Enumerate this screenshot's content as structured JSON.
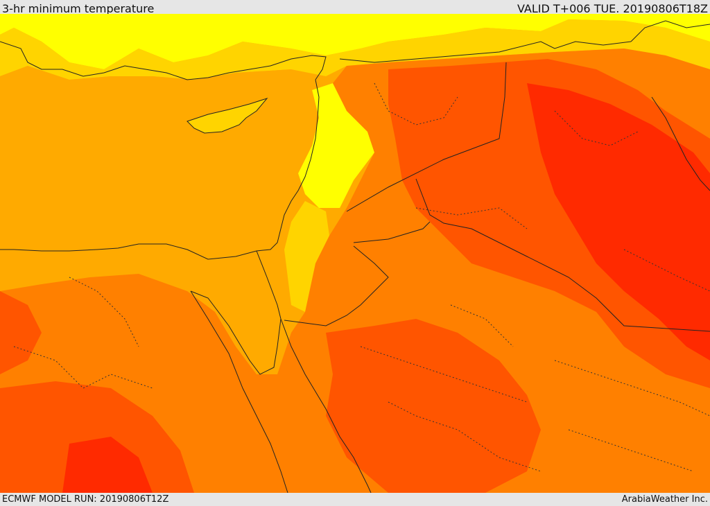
{
  "header": {
    "title": "3-hr minimum temperature",
    "valid_time": "VALID T+006 TUE. 20190806T18Z"
  },
  "footer": {
    "model_run": "ECMWF MODEL RUN: 20190806T12Z",
    "credit": "ArabiaWeather Inc."
  },
  "palette": {
    "yellow": "#ffff00",
    "gold": "#ffd400",
    "light_orange": "#ffaa00",
    "orange": "#ff8000",
    "dark_orange": "#ff5500",
    "red": "#ff2a00",
    "coastline": "#222222",
    "border": "#222222"
  }
}
